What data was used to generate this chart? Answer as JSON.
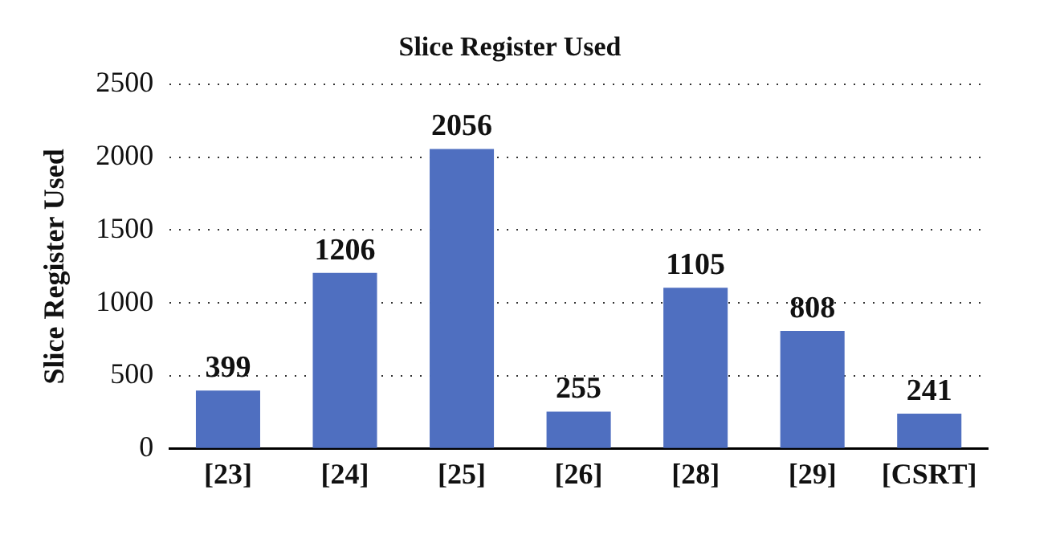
{
  "chart_data": {
    "type": "bar",
    "title": "Slice Register Used",
    "ylabel": "Slice Register Used",
    "categories": [
      "[23]",
      "[24]",
      "[25]",
      "[26]",
      "[28]",
      "[29]",
      "[CSRT]"
    ],
    "values": [
      399,
      1206,
      2056,
      255,
      1105,
      808,
      241
    ],
    "color": "#4f6fc0",
    "ylim": [
      0,
      2500
    ],
    "yticks": [
      0,
      500,
      1000,
      1500,
      2000,
      2500
    ],
    "grid": "y",
    "data_labels": true
  }
}
